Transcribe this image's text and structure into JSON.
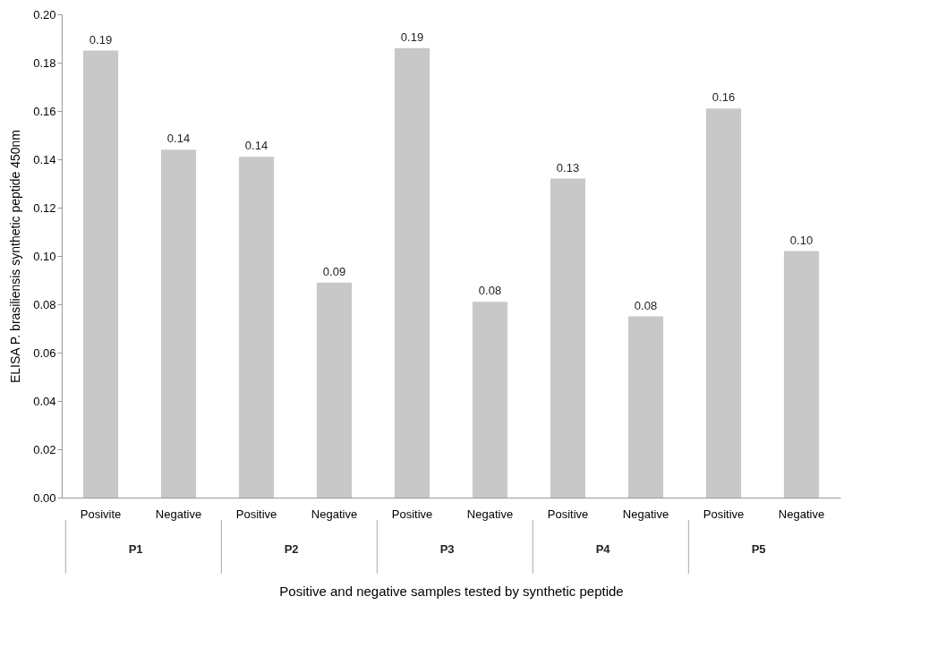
{
  "chart_data": {
    "type": "bar",
    "xlabel": "Positive and negative samples tested by synthetic peptide",
    "ylabel": "ELISA P. brasiliensis synthetic peptide 450nm",
    "categories": [
      "Posivite",
      "Negative",
      "Positive",
      "Negative",
      "Positive",
      "Negative",
      "Positive",
      "Negative",
      "Positive",
      "Negative"
    ],
    "values": [
      0.185,
      0.144,
      0.141,
      0.089,
      0.186,
      0.081,
      0.132,
      0.075,
      0.161,
      0.102
    ],
    "value_labels": [
      "0.19",
      "0.14",
      "0.14",
      "0.09",
      "0.19",
      "0.08",
      "0.13",
      "0.08",
      "0.16",
      "0.10"
    ],
    "color": "#c8c8c8",
    "ylim": [
      0,
      0.2
    ],
    "yticks": [
      {
        "value": 0,
        "label": "0.00"
      },
      {
        "value": 0.02,
        "label": "0.02"
      },
      {
        "value": 0.04,
        "label": "0.04"
      },
      {
        "value": 0.06,
        "label": "0.06"
      },
      {
        "value": 0.08,
        "label": "0.08"
      },
      {
        "value": 0.1,
        "label": "0.10"
      },
      {
        "value": 0.12,
        "label": "0.12"
      },
      {
        "value": 0.14,
        "label": "0.14"
      },
      {
        "value": 0.16,
        "label": "0.16"
      },
      {
        "value": 0.18,
        "label": "0.18"
      },
      {
        "value": 0.2,
        "label": "0.20"
      }
    ],
    "annotations": [
      "P1",
      "P2",
      "P3",
      "P4",
      "P5"
    ],
    "grid": false
  }
}
